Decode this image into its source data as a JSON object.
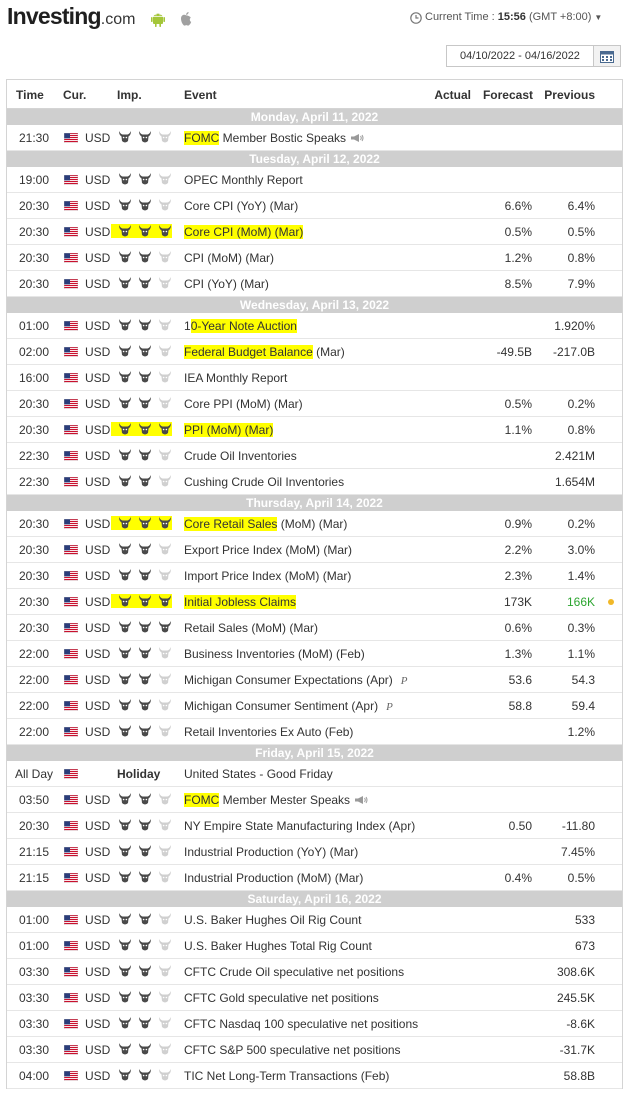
{
  "header": {
    "logo_main": "Investing",
    "logo_suffix": ".com",
    "time_label": "Current Time :",
    "time_value": "15:56",
    "timezone": "(GMT +8:00)",
    "date_range": "04/10/2022 - 04/16/2022"
  },
  "columns": {
    "time": "Time",
    "cur": "Cur.",
    "imp": "Imp.",
    "event": "Event",
    "actual": "Actual",
    "forecast": "Forecast",
    "previous": "Previous"
  },
  "colors": {
    "highlight": "#ffff00",
    "day_bar": "#cfcfcf",
    "green": "#2ca530",
    "bull_active": "#4a4a4a",
    "bull_inactive": "#d0d0d0",
    "dot": "#f1b828"
  },
  "days": [
    {
      "label": "Monday, April 11, 2022",
      "events": [
        {
          "time": "21:30",
          "cur": "USD",
          "imp": 2,
          "hl": "FOMC",
          "rest": " Member Bostic Speaks",
          "speaker": true,
          "actual": "",
          "forecast": "",
          "previous": ""
        }
      ]
    },
    {
      "label": "Tuesday, April 12, 2022",
      "events": [
        {
          "time": "19:00",
          "cur": "USD",
          "imp": 2,
          "hl": "",
          "rest": "OPEC Monthly Report",
          "actual": "",
          "forecast": "",
          "previous": ""
        },
        {
          "time": "20:30",
          "cur": "USD",
          "imp": 2,
          "hl": "",
          "rest": "Core CPI (YoY) (Mar)",
          "actual": "",
          "forecast": "6.6%",
          "previous": "6.4%"
        },
        {
          "time": "20:30",
          "cur": "USD",
          "imp": 3,
          "hl_imp": true,
          "hl": "Core CPI (MoM) (Mar)",
          "rest": "",
          "actual": "",
          "forecast": "0.5%",
          "previous": "0.5%"
        },
        {
          "time": "20:30",
          "cur": "USD",
          "imp": 2,
          "hl": "",
          "rest": "CPI (MoM) (Mar)",
          "actual": "",
          "forecast": "1.2%",
          "previous": "0.8%"
        },
        {
          "time": "20:30",
          "cur": "USD",
          "imp": 2,
          "hl": "",
          "rest": "CPI (YoY) (Mar)",
          "actual": "",
          "forecast": "8.5%",
          "previous": "7.9%"
        }
      ]
    },
    {
      "label": "Wednesday, April 13, 2022",
      "events": [
        {
          "time": "01:00",
          "cur": "USD",
          "imp": 2,
          "hl_pre": "1",
          "hl": "0-Year Note Auction",
          "rest": "",
          "actual": "",
          "forecast": "",
          "previous": "1.920%"
        },
        {
          "time": "02:00",
          "cur": "USD",
          "imp": 2,
          "hl": "Federal Budget Balance",
          "rest": " (Mar)",
          "actual": "",
          "forecast": "-49.5B",
          "previous": "-217.0B"
        },
        {
          "time": "16:00",
          "cur": "USD",
          "imp": 2,
          "hl": "",
          "rest": "IEA Monthly Report",
          "actual": "",
          "forecast": "",
          "previous": ""
        },
        {
          "time": "20:30",
          "cur": "USD",
          "imp": 2,
          "hl": "",
          "rest": "Core PPI (MoM) (Mar)",
          "actual": "",
          "forecast": "0.5%",
          "previous": "0.2%"
        },
        {
          "time": "20:30",
          "cur": "USD",
          "imp": 3,
          "hl_imp": true,
          "hl": "PPI (MoM) (Mar)",
          "rest": "",
          "actual": "",
          "forecast": "1.1%",
          "previous": "0.8%"
        },
        {
          "time": "22:30",
          "cur": "USD",
          "imp": 2,
          "hl": "",
          "rest": "Crude Oil Inventories",
          "actual": "",
          "forecast": "",
          "previous": "2.421M"
        },
        {
          "time": "22:30",
          "cur": "USD",
          "imp": 2,
          "hl": "",
          "rest": "Cushing Crude Oil Inventories",
          "actual": "",
          "forecast": "",
          "previous": "1.654M"
        }
      ]
    },
    {
      "label": "Thursday, April 14, 2022",
      "events": [
        {
          "time": "20:30",
          "cur": "USD",
          "imp": 3,
          "hl_imp": true,
          "hl": "Core Retail Sales",
          "rest": " (MoM) (Mar)",
          "actual": "",
          "forecast": "0.9%",
          "previous": "0.2%"
        },
        {
          "time": "20:30",
          "cur": "USD",
          "imp": 2,
          "hl": "",
          "rest": "Export Price Index (MoM) (Mar)",
          "actual": "",
          "forecast": "2.2%",
          "previous": "3.0%"
        },
        {
          "time": "20:30",
          "cur": "USD",
          "imp": 2,
          "hl": "",
          "rest": "Import Price Index (MoM) (Mar)",
          "actual": "",
          "forecast": "2.3%",
          "previous": "1.4%"
        },
        {
          "time": "20:30",
          "cur": "USD",
          "imp": 3,
          "hl_imp": true,
          "hl": "Initial Jobless Claims",
          "rest": "",
          "actual": "",
          "forecast": "173K",
          "previous": "166K",
          "prev_green": true,
          "dot": true
        },
        {
          "time": "20:30",
          "cur": "USD",
          "imp": 3,
          "hl": "",
          "rest": "Retail Sales (MoM) (Mar)",
          "actual": "",
          "forecast": "0.6%",
          "previous": "0.3%"
        },
        {
          "time": "22:00",
          "cur": "USD",
          "imp": 2,
          "hl": "",
          "rest": "Business Inventories (MoM) (Feb)",
          "actual": "",
          "forecast": "1.3%",
          "previous": "1.1%"
        },
        {
          "time": "22:00",
          "cur": "USD",
          "imp": 2,
          "hl": "",
          "rest": "Michigan Consumer Expectations (Apr)",
          "pre": "P",
          "actual": "",
          "forecast": "53.6",
          "previous": "54.3"
        },
        {
          "time": "22:00",
          "cur": "USD",
          "imp": 2,
          "hl": "",
          "rest": "Michigan Consumer Sentiment (Apr)",
          "pre": "P",
          "actual": "",
          "forecast": "58.8",
          "previous": "59.4"
        },
        {
          "time": "22:00",
          "cur": "USD",
          "imp": 2,
          "hl": "",
          "rest": "Retail Inventories Ex Auto (Feb)",
          "actual": "",
          "forecast": "",
          "previous": "1.2%"
        }
      ]
    },
    {
      "label": "Friday, April 15, 2022",
      "events": [
        {
          "time": "All Day",
          "cur": "",
          "holiday": "Holiday",
          "imp": 0,
          "hl": "",
          "rest": "United States - Good Friday",
          "actual": "",
          "forecast": "",
          "previous": ""
        },
        {
          "time": "03:50",
          "cur": "USD",
          "imp": 2,
          "hl": "FOMC",
          "rest": " Member Mester Speaks",
          "speaker": true,
          "actual": "",
          "forecast": "",
          "previous": ""
        },
        {
          "time": "20:30",
          "cur": "USD",
          "imp": 2,
          "hl": "",
          "rest": "NY Empire State Manufacturing Index (Apr)",
          "actual": "",
          "forecast": "0.50",
          "previous": "-11.80"
        },
        {
          "time": "21:15",
          "cur": "USD",
          "imp": 2,
          "hl": "",
          "rest": "Industrial Production (YoY) (Mar)",
          "actual": "",
          "forecast": "",
          "previous": "7.45%"
        },
        {
          "time": "21:15",
          "cur": "USD",
          "imp": 2,
          "hl": "",
          "rest": "Industrial Production (MoM) (Mar)",
          "actual": "",
          "forecast": "0.4%",
          "previous": "0.5%"
        }
      ]
    },
    {
      "label": "Saturday, April 16, 2022",
      "events": [
        {
          "time": "01:00",
          "cur": "USD",
          "imp": 2,
          "hl": "",
          "rest": "U.S. Baker Hughes Oil Rig Count",
          "actual": "",
          "forecast": "",
          "previous": "533"
        },
        {
          "time": "01:00",
          "cur": "USD",
          "imp": 2,
          "hl": "",
          "rest": "U.S. Baker Hughes Total Rig Count",
          "actual": "",
          "forecast": "",
          "previous": "673"
        },
        {
          "time": "03:30",
          "cur": "USD",
          "imp": 2,
          "hl": "",
          "rest": "CFTC Crude Oil speculative net positions",
          "actual": "",
          "forecast": "",
          "previous": "308.6K"
        },
        {
          "time": "03:30",
          "cur": "USD",
          "imp": 2,
          "hl": "",
          "rest": "CFTC Gold speculative net positions",
          "actual": "",
          "forecast": "",
          "previous": "245.5K"
        },
        {
          "time": "03:30",
          "cur": "USD",
          "imp": 2,
          "hl": "",
          "rest": "CFTC Nasdaq 100 speculative net positions",
          "actual": "",
          "forecast": "",
          "previous": "-8.6K"
        },
        {
          "time": "03:30",
          "cur": "USD",
          "imp": 2,
          "hl": "",
          "rest": "CFTC S&P 500 speculative net positions",
          "actual": "",
          "forecast": "",
          "previous": "-31.7K"
        },
        {
          "time": "04:00",
          "cur": "USD",
          "imp": 2,
          "hl": "",
          "rest": "TIC Net Long-Term Transactions (Feb)",
          "actual": "",
          "forecast": "",
          "previous": "58.8B"
        }
      ]
    }
  ]
}
